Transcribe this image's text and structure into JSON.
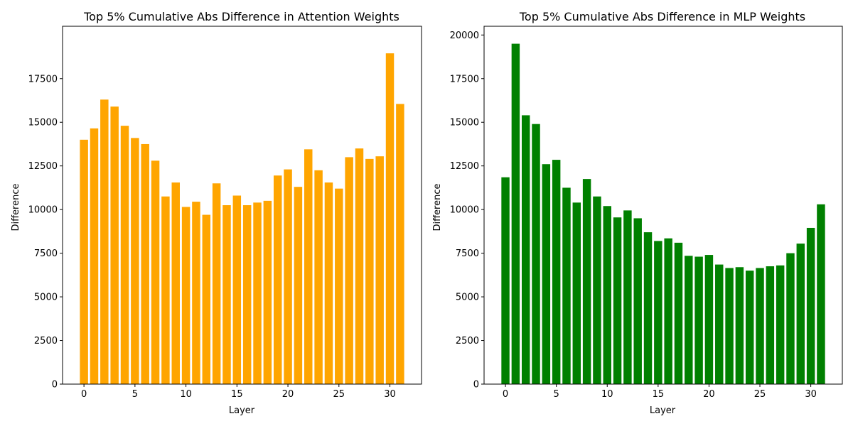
{
  "chart_data": [
    {
      "type": "bar",
      "title": "Top 5% Cumulative Abs Difference in Attention Weights",
      "xlabel": "Layer",
      "ylabel": "Difference",
      "color": "#ffa500",
      "xlim": [
        -2.1,
        33.1
      ],
      "ylim": [
        0,
        20500
      ],
      "xticks": [
        0,
        5,
        10,
        15,
        20,
        25,
        30
      ],
      "yticks": [
        0,
        2500,
        5000,
        7500,
        10000,
        12500,
        15000,
        17500
      ],
      "grid": false,
      "x": [
        0,
        1,
        2,
        3,
        4,
        5,
        6,
        7,
        8,
        9,
        10,
        11,
        12,
        13,
        14,
        15,
        16,
        17,
        18,
        19,
        20,
        21,
        22,
        23,
        24,
        25,
        26,
        27,
        28,
        29,
        30,
        31
      ],
      "values": [
        14000,
        14650,
        16300,
        15900,
        14800,
        14100,
        13750,
        12800,
        10750,
        11550,
        10150,
        10450,
        9700,
        11500,
        10250,
        10800,
        10250,
        10400,
        10500,
        11950,
        12300,
        11300,
        13450,
        12250,
        11550,
        11200,
        13000,
        13500,
        12900,
        13050,
        18950,
        16050
      ]
    },
    {
      "type": "bar",
      "title": "Top 5% Cumulative Abs Difference in MLP Weights",
      "xlabel": "Layer",
      "ylabel": "Difference",
      "color": "#008000",
      "xlim": [
        -2.1,
        33.1
      ],
      "ylim": [
        0,
        20500
      ],
      "xticks": [
        0,
        5,
        10,
        15,
        20,
        25,
        30
      ],
      "yticks": [
        0,
        2500,
        5000,
        7500,
        10000,
        12500,
        15000,
        17500,
        20000
      ],
      "grid": false,
      "x": [
        0,
        1,
        2,
        3,
        4,
        5,
        6,
        7,
        8,
        9,
        10,
        11,
        12,
        13,
        14,
        15,
        16,
        17,
        18,
        19,
        20,
        21,
        22,
        23,
        24,
        25,
        26,
        27,
        28,
        29,
        30,
        31
      ],
      "values": [
        11850,
        19500,
        15400,
        14900,
        12600,
        12850,
        11250,
        10400,
        11750,
        10750,
        10200,
        9550,
        9950,
        9500,
        8700,
        8200,
        8350,
        8100,
        7350,
        7300,
        7400,
        6850,
        6650,
        6700,
        6500,
        6650,
        6750,
        6800,
        7500,
        8050,
        8950,
        10300
      ]
    }
  ]
}
